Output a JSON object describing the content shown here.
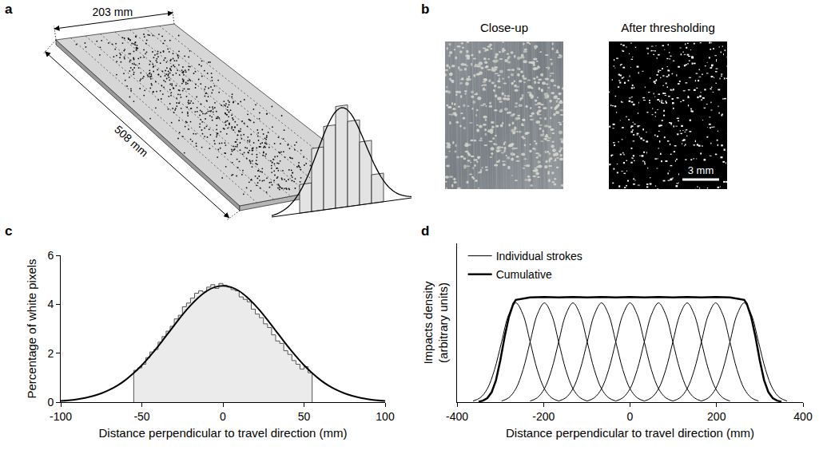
{
  "figure": {
    "panel_a": {
      "label": "a",
      "width_label": "203 mm",
      "length_label": "508 mm"
    },
    "panel_b": {
      "label": "b",
      "left_title": "Close-up",
      "right_title": "After thresholding",
      "scale_bar": "3 mm"
    }
  },
  "chart_data": [
    {
      "panel": "c",
      "type": "histogram",
      "x_label": "Distance perpendicular to travel direction (mm)",
      "y_label": "Percentage of white pixels",
      "xlim": [
        -100,
        100
      ],
      "xticks": [
        -100,
        -50,
        0,
        50,
        100
      ],
      "ylim": [
        0,
        6
      ],
      "yticks": [
        0,
        2,
        4,
        6
      ],
      "grid": false,
      "color": "#ebebeb",
      "bins": [
        -55,
        -52.5,
        -50,
        -47.5,
        -45,
        -42.5,
        -40,
        -37.5,
        -35,
        -32.5,
        -30,
        -27.5,
        -25,
        -22.5,
        -20,
        -17.5,
        -15,
        -12.5,
        -10,
        -7.5,
        -5,
        -2.5,
        0,
        2.5,
        5,
        7.5,
        10,
        12.5,
        15,
        17.5,
        20,
        22.5,
        25,
        27.5,
        30,
        32.5,
        35,
        37.5,
        40,
        42.5,
        45,
        47.5,
        50,
        52.5,
        55
      ],
      "counts": [
        1.3,
        1.4,
        1.55,
        1.82,
        2.05,
        2.15,
        2.45,
        2.68,
        2.9,
        3.1,
        3.4,
        3.55,
        3.9,
        4.05,
        4.25,
        4.45,
        4.55,
        4.5,
        4.7,
        4.8,
        4.65,
        4.85,
        4.78,
        4.7,
        4.6,
        4.55,
        4.3,
        4.2,
        4.1,
        3.8,
        3.6,
        3.45,
        3.2,
        3.05,
        2.75,
        2.5,
        2.4,
        2.1,
        1.95,
        1.7,
        1.55,
        1.35,
        1.45,
        1.2
      ],
      "curve": {
        "color": "#000000",
        "x": [
          -100,
          -95,
          -90,
          -85,
          -80,
          -75,
          -70,
          -65,
          -60,
          -55,
          -50,
          -45,
          -40,
          -35,
          -30,
          -25,
          -20,
          -15,
          -10,
          -5,
          0,
          5,
          10,
          15,
          20,
          25,
          30,
          35,
          40,
          45,
          50,
          55,
          60,
          65,
          70,
          75,
          80,
          85,
          90,
          95,
          100
        ],
        "values": [
          0.048,
          0.075,
          0.115,
          0.17,
          0.25,
          0.36,
          0.5,
          0.68,
          0.91,
          1.19,
          1.51,
          1.88,
          2.28,
          2.71,
          3.14,
          3.57,
          3.95,
          4.28,
          4.54,
          4.7,
          4.75,
          4.7,
          4.54,
          4.28,
          3.95,
          3.57,
          3.14,
          2.71,
          2.28,
          1.88,
          1.51,
          1.19,
          0.91,
          0.68,
          0.5,
          0.36,
          0.25,
          0.17,
          0.115,
          0.075,
          0.048
        ]
      }
    },
    {
      "panel": "d",
      "type": "line",
      "x_label": "Distance perpendicular to travel direction (mm)",
      "y_label": "Impacts density (arbitrary units)",
      "xlim": [
        -400,
        400
      ],
      "xticks": [
        -400,
        -200,
        0,
        200,
        400
      ],
      "ylim": [
        0,
        1.6
      ],
      "tick_labels": "x",
      "grid": false,
      "legend": "upper left",
      "series": [
        {
          "name": "Individual strokes",
          "color": "#000000",
          "x": [
            -363,
            -346.5,
            -330,
            -313.5,
            -297,
            -280.5,
            -264,
            -247.5,
            -231,
            -214.5,
            -198,
            -181.5,
            -165
          ],
          "values": [
            0.011,
            0.044,
            0.135,
            0.325,
            0.607,
            0.882,
            1,
            0.882,
            0.607,
            0.325,
            0.135,
            0.044,
            0.011
          ]
        },
        {
          "name": "Individual strokes",
          "color": "#000000",
          "x": [
            -297,
            -280.5,
            -264,
            -247.5,
            -231,
            -214.5,
            -198,
            -181.5,
            -165,
            -148.5,
            -132,
            -115.5,
            -99
          ],
          "values": [
            0.011,
            0.044,
            0.135,
            0.325,
            0.607,
            0.882,
            1,
            0.882,
            0.607,
            0.325,
            0.135,
            0.044,
            0.011
          ]
        },
        {
          "name": "Individual strokes",
          "color": "#000000",
          "x": [
            -231,
            -214.5,
            -198,
            -181.5,
            -165,
            -148.5,
            -132,
            -115.5,
            -99,
            -82.5,
            -66,
            -49.5,
            -33
          ],
          "values": [
            0.011,
            0.044,
            0.135,
            0.325,
            0.607,
            0.882,
            1,
            0.882,
            0.607,
            0.325,
            0.135,
            0.044,
            0.011
          ]
        },
        {
          "name": "Individual strokes",
          "color": "#000000",
          "x": [
            -165,
            -148.5,
            -132,
            -115.5,
            -99,
            -82.5,
            -66,
            -49.5,
            -33,
            -16.5,
            0,
            16.5,
            33
          ],
          "values": [
            0.011,
            0.044,
            0.135,
            0.325,
            0.607,
            0.882,
            1,
            0.882,
            0.607,
            0.325,
            0.135,
            0.044,
            0.011
          ]
        },
        {
          "name": "Individual strokes",
          "color": "#000000",
          "x": [
            -99,
            -82.5,
            -66,
            -49.5,
            -33,
            -16.5,
            0,
            16.5,
            33,
            49.5,
            66,
            82.5,
            99
          ],
          "values": [
            0.011,
            0.044,
            0.135,
            0.325,
            0.607,
            0.882,
            1,
            0.882,
            0.607,
            0.325,
            0.135,
            0.044,
            0.011
          ]
        },
        {
          "name": "Individual strokes",
          "color": "#000000",
          "x": [
            -33,
            -16.5,
            0,
            16.5,
            33,
            49.5,
            66,
            82.5,
            99,
            115.5,
            132,
            148.5,
            165
          ],
          "values": [
            0.011,
            0.044,
            0.135,
            0.325,
            0.607,
            0.882,
            1,
            0.882,
            0.607,
            0.325,
            0.135,
            0.044,
            0.011
          ]
        },
        {
          "name": "Individual strokes",
          "color": "#000000",
          "x": [
            33,
            49.5,
            66,
            82.5,
            99,
            115.5,
            132,
            148.5,
            165,
            181.5,
            198,
            214.5,
            231
          ],
          "values": [
            0.011,
            0.044,
            0.135,
            0.325,
            0.607,
            0.882,
            1,
            0.882,
            0.607,
            0.325,
            0.135,
            0.044,
            0.011
          ]
        },
        {
          "name": "Individual strokes",
          "color": "#000000",
          "x": [
            99,
            115.5,
            132,
            148.5,
            165,
            181.5,
            198,
            214.5,
            231,
            247.5,
            264,
            280.5,
            297
          ],
          "values": [
            0.011,
            0.044,
            0.135,
            0.325,
            0.607,
            0.882,
            1,
            0.882,
            0.607,
            0.325,
            0.135,
            0.044,
            0.011
          ]
        },
        {
          "name": "Individual strokes",
          "color": "#000000",
          "x": [
            165,
            181.5,
            198,
            214.5,
            231,
            247.5,
            264,
            280.5,
            297,
            313.5,
            330,
            346.5,
            363
          ],
          "values": [
            0.011,
            0.044,
            0.135,
            0.325,
            0.607,
            0.882,
            1,
            0.882,
            0.607,
            0.325,
            0.135,
            0.044,
            0.011
          ]
        },
        {
          "name": "Cumulative",
          "color": "#000000",
          "x": [
            -350,
            -340,
            -330,
            -320,
            -310,
            -300,
            -290,
            -280,
            -270,
            -264,
            -231,
            -198,
            -165,
            -132,
            -99,
            -66,
            -33,
            0,
            33,
            66,
            99,
            132,
            165,
            198,
            231,
            264,
            270,
            280,
            290,
            300,
            310,
            320,
            330,
            340,
            350
          ],
          "values": [
            0.005,
            0.015,
            0.04,
            0.1,
            0.22,
            0.42,
            0.66,
            0.86,
            0.99,
            1.03,
            1.055,
            1.06,
            1.055,
            1.06,
            1.055,
            1.06,
            1.055,
            1.06,
            1.055,
            1.06,
            1.055,
            1.06,
            1.055,
            1.06,
            1.055,
            1.03,
            0.99,
            0.86,
            0.66,
            0.42,
            0.22,
            0.1,
            0.04,
            0.015,
            0.005
          ]
        }
      ]
    }
  ]
}
